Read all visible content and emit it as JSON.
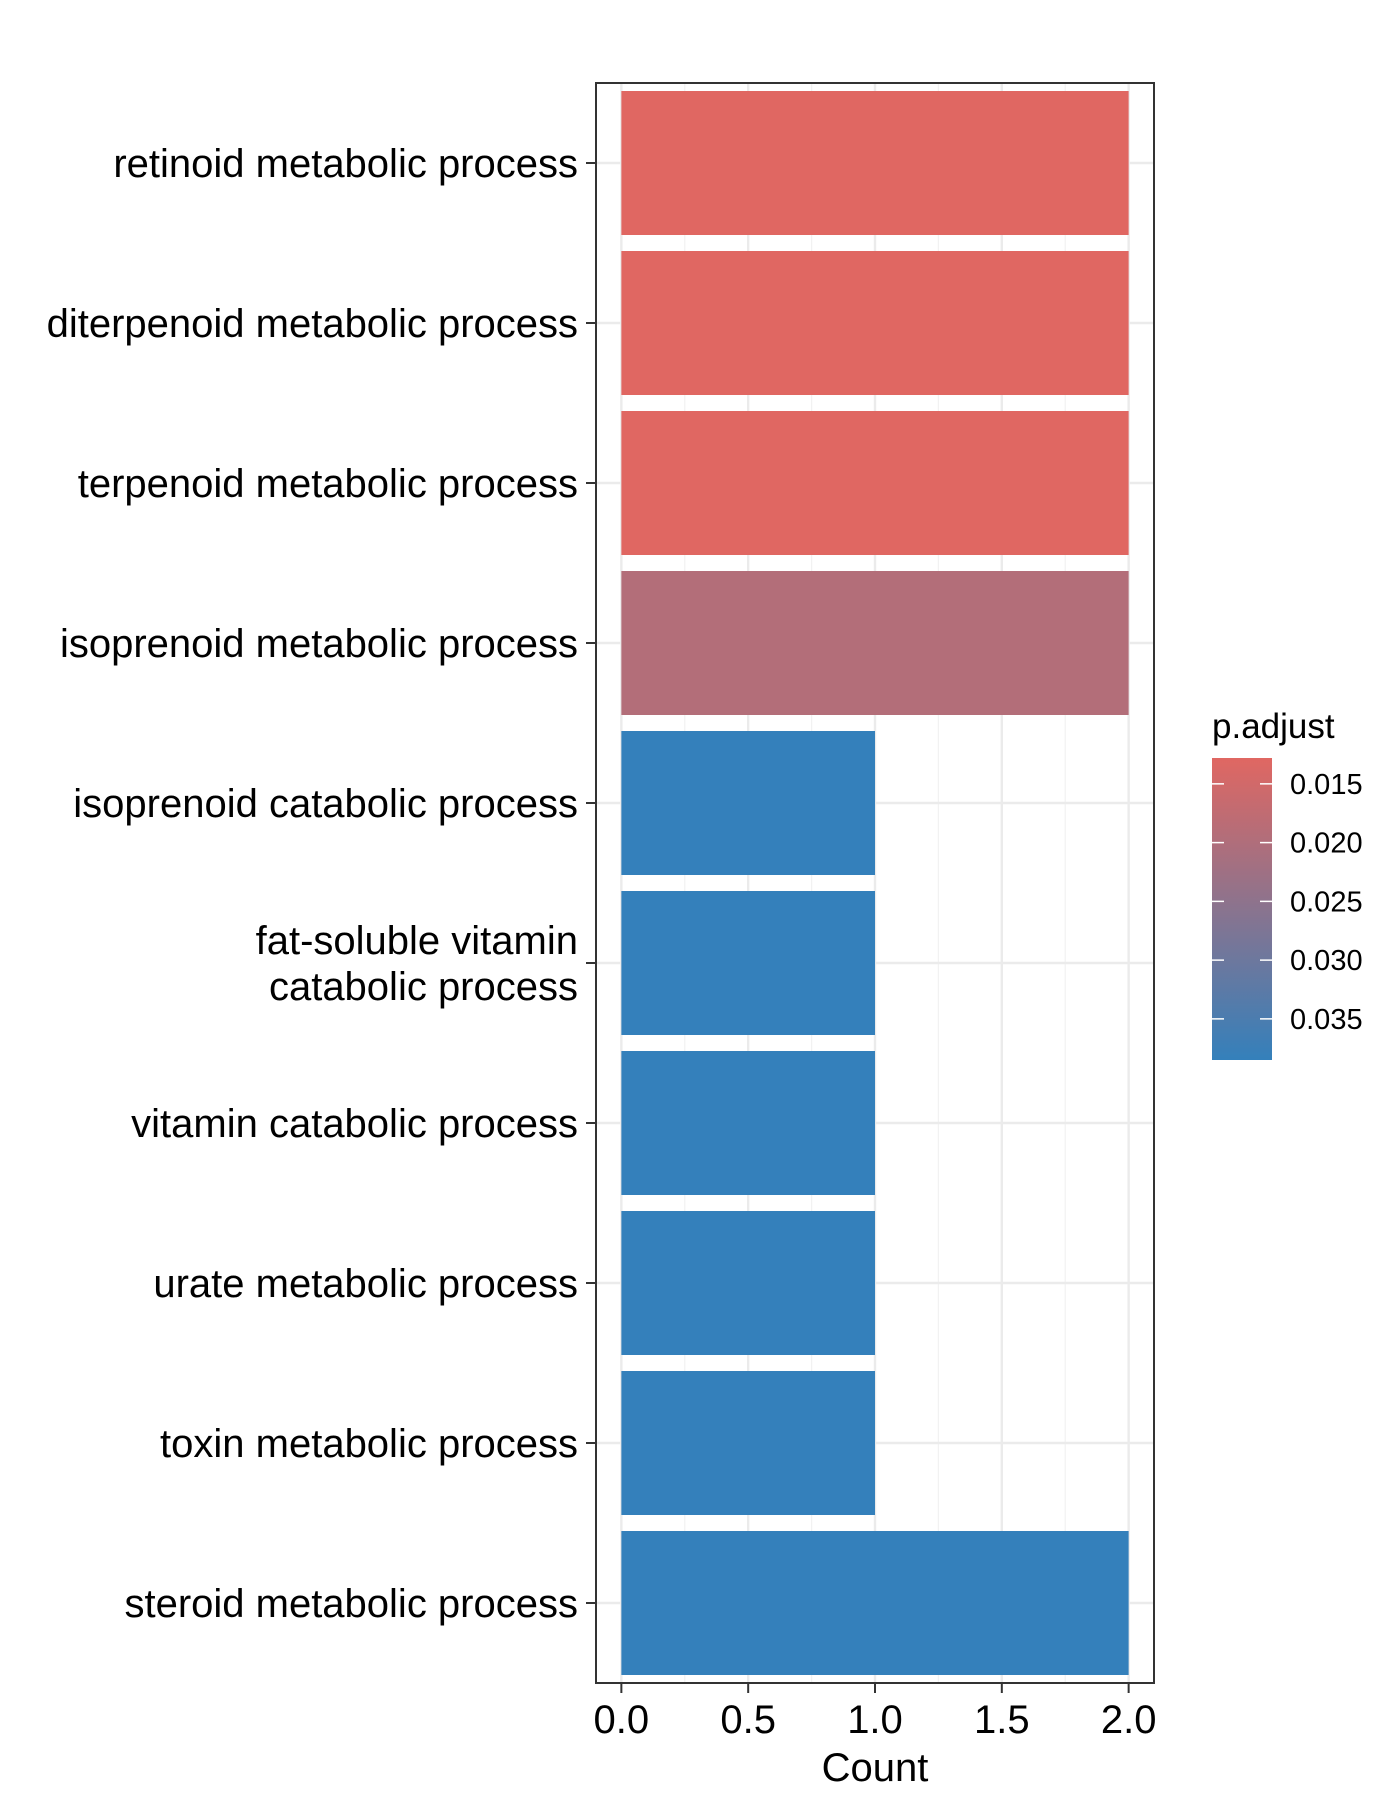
{
  "chart_data": {
    "type": "bar",
    "orientation": "horizontal",
    "categories": [
      "retinoid metabolic process",
      "diterpenoid metabolic process",
      "terpenoid metabolic process",
      "isoprenoid metabolic process",
      "isoprenoid catabolic process",
      "fat-soluble vitamin catabolic process",
      "vitamin catabolic process",
      "urate metabolic process",
      "toxin metabolic process",
      "steroid metabolic process"
    ],
    "category_display_lines": [
      [
        "retinoid metabolic process"
      ],
      [
        "diterpenoid metabolic process"
      ],
      [
        "terpenoid metabolic process"
      ],
      [
        "isoprenoid metabolic process"
      ],
      [
        "isoprenoid catabolic process"
      ],
      [
        "fat-soluble vitamin",
        "catabolic process"
      ],
      [
        "vitamin catabolic process"
      ],
      [
        "urate metabolic process"
      ],
      [
        "toxin metabolic process"
      ],
      [
        "steroid metabolic process"
      ]
    ],
    "values": [
      2,
      2,
      2,
      2,
      1,
      1,
      1,
      1,
      1,
      2
    ],
    "p_adjust": [
      0.0128,
      0.0128,
      0.0128,
      0.0195,
      0.0385,
      0.0385,
      0.0385,
      0.0385,
      0.0385,
      0.0385
    ],
    "xlabel": "Count",
    "ylabel": "",
    "xlim": [
      -0.1,
      2.1
    ],
    "x_ticks": [
      "0.0",
      "0.5",
      "1.0",
      "1.5",
      "2.0"
    ],
    "x_tick_values": [
      0,
      0.5,
      1,
      1.5,
      2
    ],
    "grid": true,
    "legend": {
      "title": "p.adjust",
      "placement": "right",
      "type": "colorbar",
      "range": [
        0.0128,
        0.0385
      ],
      "ticks": [
        "0.015",
        "0.020",
        "0.025",
        "0.030",
        "0.035"
      ],
      "tick_values": [
        0.015,
        0.02,
        0.025,
        0.03,
        0.035
      ],
      "color_low": "#E06762",
      "color_high": "#3480BB"
    }
  }
}
